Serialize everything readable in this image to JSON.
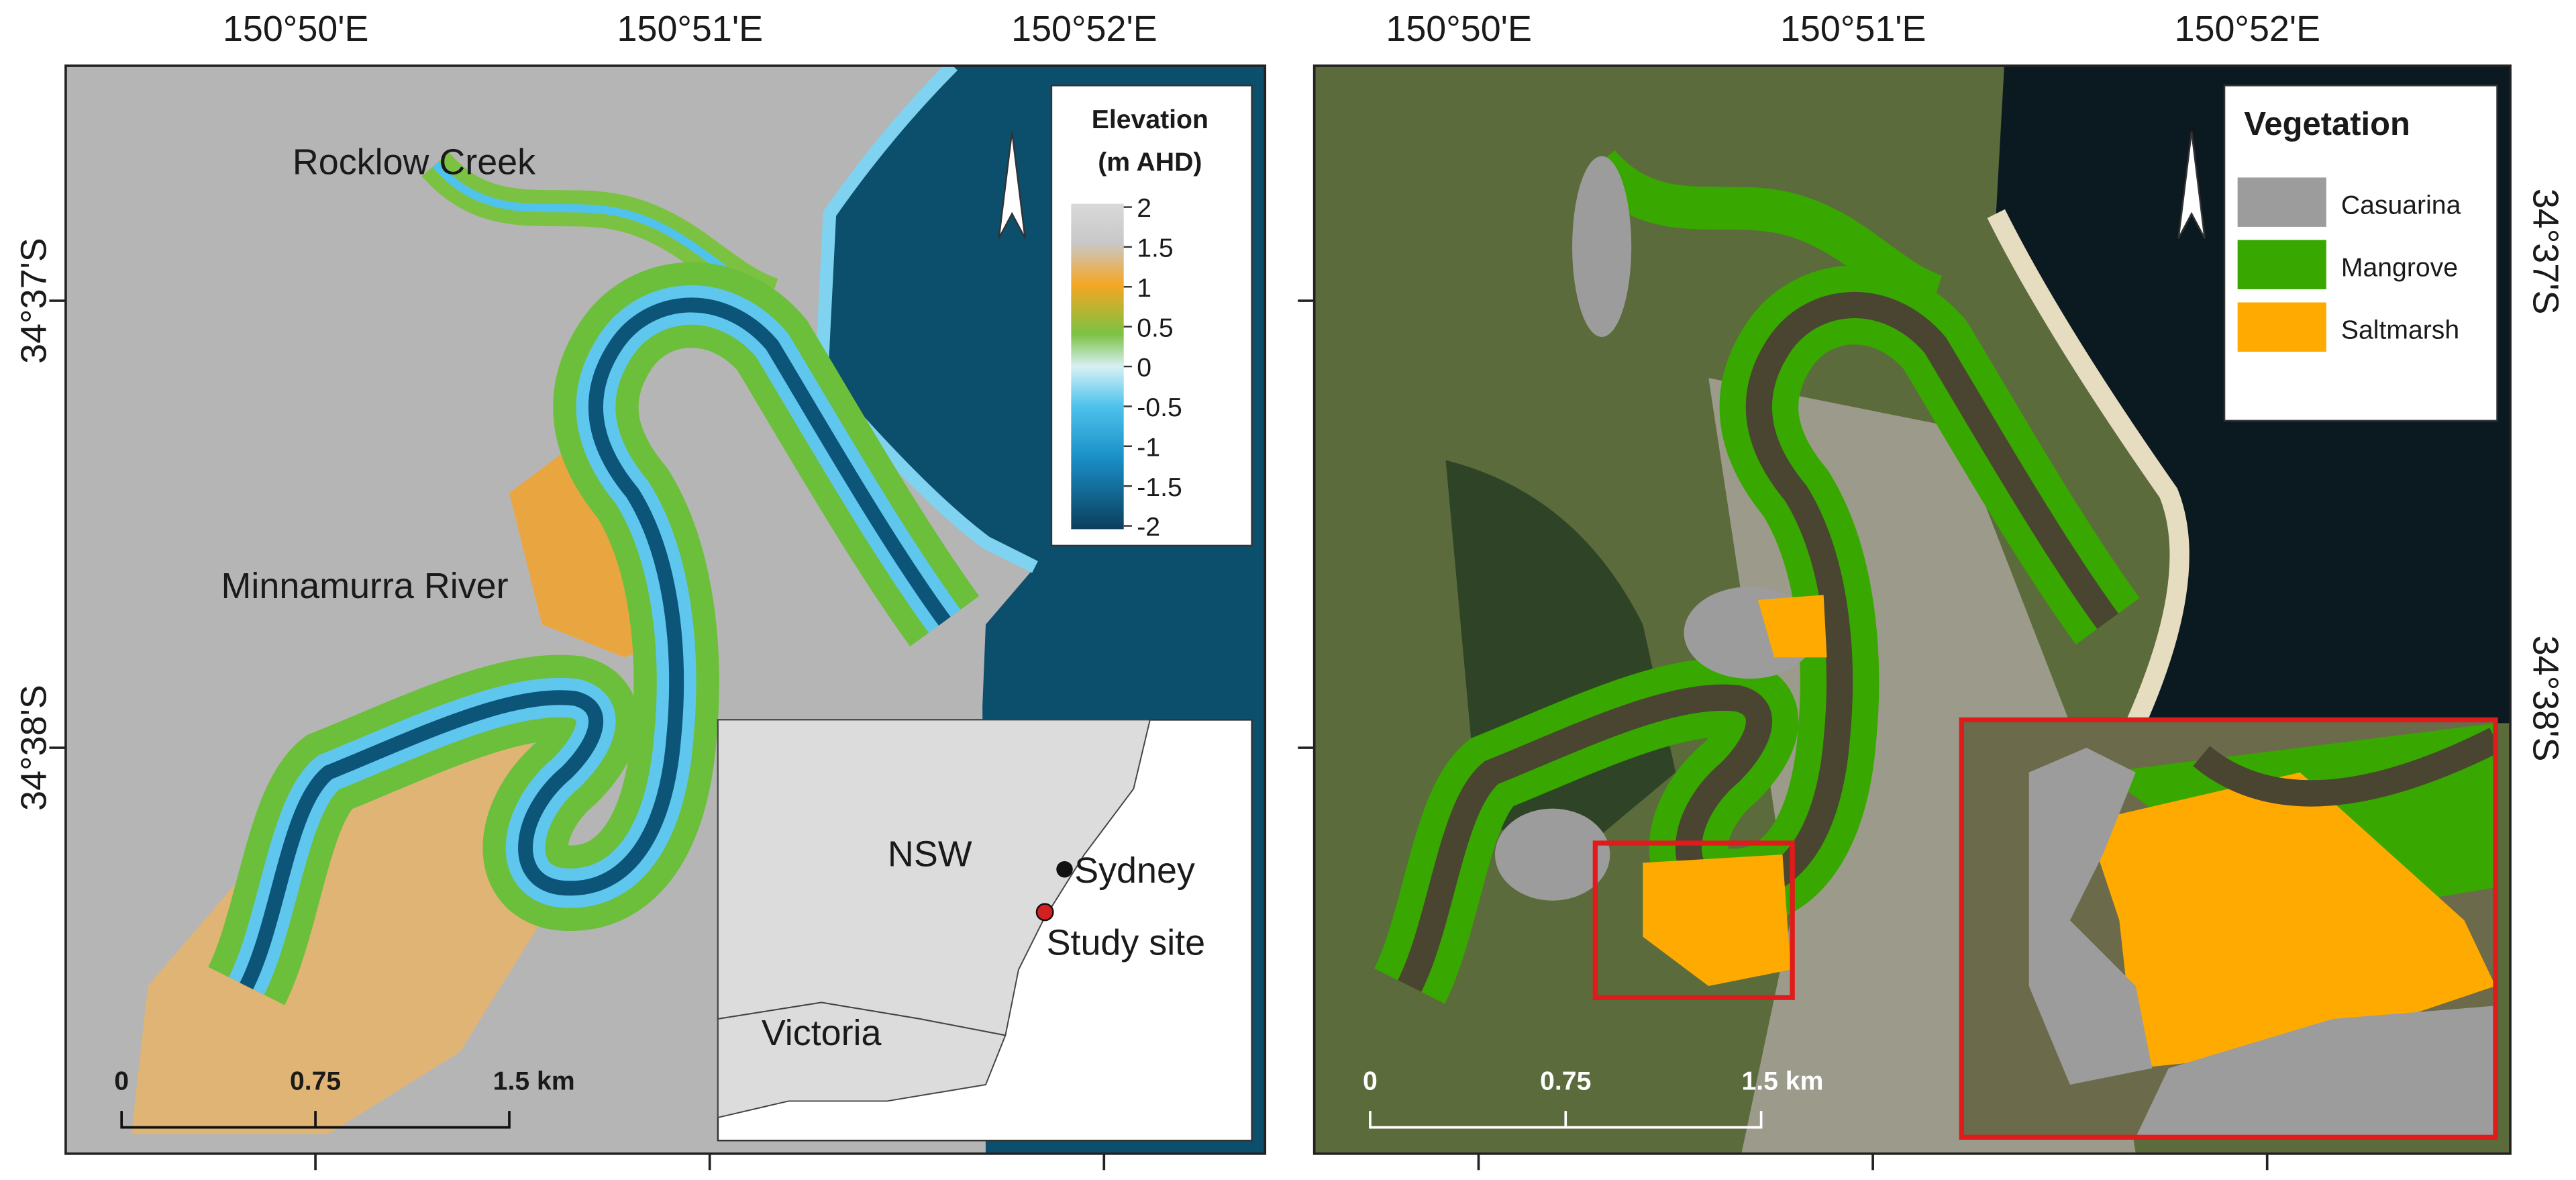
{
  "elevation_map": {
    "longitude_labels": [
      "150°50'E",
      "150°51'E",
      "150°52'E"
    ],
    "latitude_labels": [
      "34°37'S",
      "34°38'S"
    ],
    "place_labels": [
      "Rocklow Creek",
      "Minnamurra River"
    ],
    "legend": {
      "title_lines": [
        "Elevation",
        "(m AHD)"
      ],
      "ticks": [
        2,
        1.5,
        1,
        0.5,
        0,
        -0.5,
        -1,
        -1.5,
        -2
      ]
    },
    "scale_bar": [
      "0",
      "0.75",
      "1.5 km"
    ],
    "inset": {
      "region_labels": [
        "NSW",
        "Victoria"
      ],
      "point_labels": [
        "Sydney",
        "Study site"
      ]
    }
  },
  "vegetation_map": {
    "longitude_labels": [
      "150°50'E",
      "150°51'E",
      "150°52'E"
    ],
    "latitude_labels": [
      "34°37'S",
      "34°38'S"
    ],
    "legend": {
      "title": "Vegetation",
      "entries": [
        {
          "label": "Casuarina",
          "color": "#9c9c9c"
        },
        {
          "label": "Mangrove",
          "color": "#38a800"
        },
        {
          "label": "Saltmarsh",
          "color": "#ffaa00"
        }
      ]
    },
    "scale_bar": [
      "0",
      "0.75",
      "1.5 km"
    ]
  }
}
